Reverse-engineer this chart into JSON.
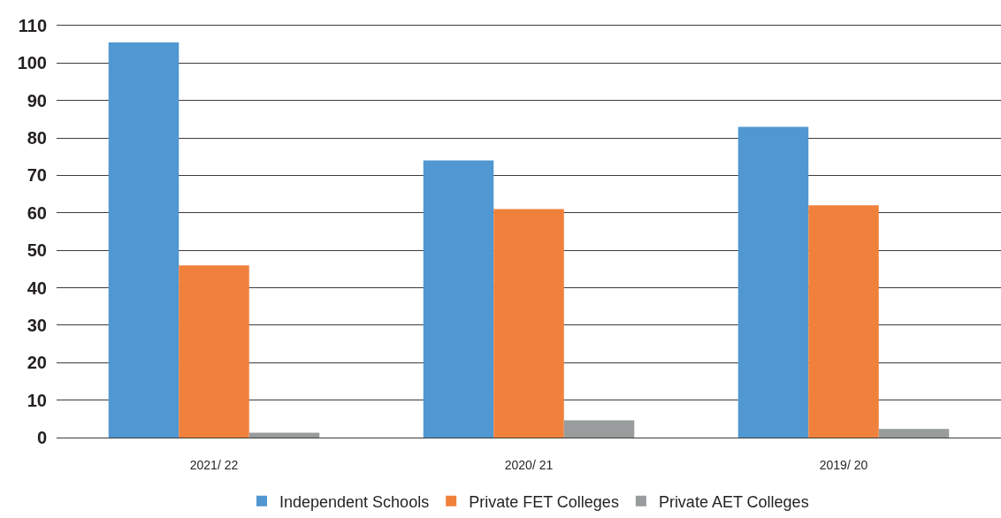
{
  "chart_data": {
    "type": "bar",
    "categories": [
      "2021/ 22",
      "2020/ 21",
      "2019/ 20"
    ],
    "series": [
      {
        "name": "Independent Schools",
        "color": "#5197d2",
        "values": [
          105.5,
          74,
          83
        ]
      },
      {
        "name": "Private FET Colleges",
        "color": "#f0813c",
        "values": [
          46,
          61,
          62
        ]
      },
      {
        "name": "Private AET Colleges",
        "color": "#999c9c",
        "values": [
          1.3,
          4.6,
          2.3
        ]
      }
    ],
    "ylim": [
      0,
      110
    ],
    "yticks": [
      0,
      10,
      20,
      30,
      40,
      50,
      60,
      70,
      80,
      90,
      100,
      110
    ],
    "grid": "y",
    "legend": "bottom"
  }
}
